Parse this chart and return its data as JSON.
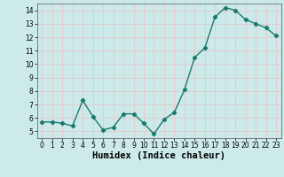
{
  "x": [
    0,
    1,
    2,
    3,
    4,
    5,
    6,
    7,
    8,
    9,
    10,
    11,
    12,
    13,
    14,
    15,
    16,
    17,
    18,
    19,
    20,
    21,
    22,
    23
  ],
  "y": [
    5.7,
    5.7,
    5.6,
    5.4,
    7.3,
    6.1,
    5.1,
    5.3,
    6.3,
    6.3,
    5.6,
    4.8,
    5.9,
    6.4,
    8.1,
    10.5,
    11.2,
    13.5,
    14.2,
    14.0,
    13.3,
    13.0,
    12.7,
    12.1
  ],
  "line_color": "#1a7a6e",
  "marker": "D",
  "marker_size": 2.2,
  "bg_color": "#cceaea",
  "grid_color": "#e8c8c8",
  "xlabel": "Humidex (Indice chaleur)",
  "xlim": [
    -0.5,
    23.5
  ],
  "ylim": [
    4.5,
    14.5
  ],
  "yticks": [
    5,
    6,
    7,
    8,
    9,
    10,
    11,
    12,
    13,
    14
  ],
  "xticks": [
    0,
    1,
    2,
    3,
    4,
    5,
    6,
    7,
    8,
    9,
    10,
    11,
    12,
    13,
    14,
    15,
    16,
    17,
    18,
    19,
    20,
    21,
    22,
    23
  ],
  "tick_label_fontsize": 5.5,
  "xlabel_fontsize": 7.5,
  "linewidth": 1.0
}
